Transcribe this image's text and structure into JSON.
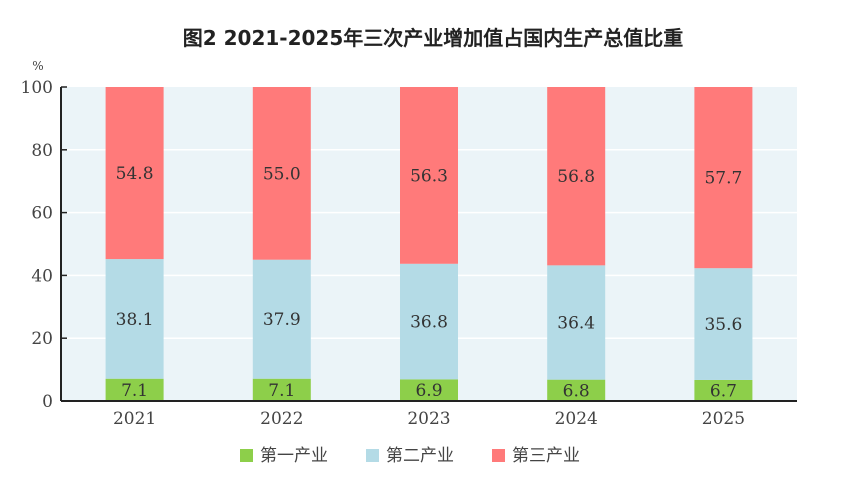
{
  "chart_data": {
    "type": "bar",
    "stacked": true,
    "title": "图2   2021-2025年三次产业增加值占国内生产总值比重",
    "ylabel": "%",
    "ylim": [
      0,
      100
    ],
    "yticks": [
      0,
      20,
      40,
      60,
      80,
      100
    ],
    "grid": true,
    "legend_position": "bottom",
    "categories": [
      "2021",
      "2022",
      "2023",
      "2024",
      "2025"
    ],
    "series": [
      {
        "name": "第一产业",
        "color": "#8dcf4a",
        "values": [
          7.1,
          7.1,
          6.9,
          6.8,
          6.7
        ],
        "labels": [
          "7.1",
          "7.1",
          "6.9",
          "6.8",
          "6.7"
        ]
      },
      {
        "name": "第二产业",
        "color": "#b4dbe6",
        "values": [
          38.1,
          37.9,
          36.8,
          36.4,
          35.6
        ],
        "labels": [
          "38.1",
          "37.9",
          "36.8",
          "36.4",
          "35.6"
        ]
      },
      {
        "name": "第三产业",
        "color": "#ff7a7a",
        "values": [
          54.8,
          55.0,
          56.3,
          56.8,
          57.7
        ],
        "labels": [
          "54.8",
          "55.0",
          "56.3",
          "56.8",
          "57.7"
        ]
      }
    ],
    "plot_background": "#ebf4f8"
  }
}
